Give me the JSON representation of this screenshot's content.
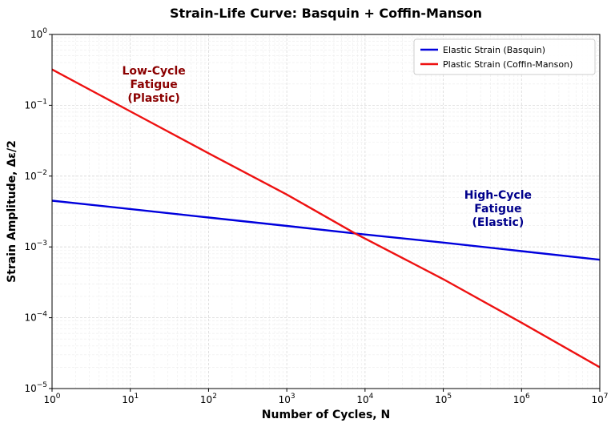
{
  "chart_data": {
    "type": "line",
    "title": "Strain-Life Curve: Basquin + Coffin-Manson",
    "xlabel": "Number of Cycles, N",
    "ylabel": "Strain Amplitude, Δε/2",
    "xscale": "log",
    "yscale": "log",
    "xlim": [
      1,
      10000000
    ],
    "ylim": [
      1e-05,
      1
    ],
    "grid": true,
    "legend_position": "top-right",
    "x_ticks": [
      {
        "value": 1,
        "base": "10",
        "exp": "0"
      },
      {
        "value": 10,
        "base": "10",
        "exp": "1"
      },
      {
        "value": 100,
        "base": "10",
        "exp": "2"
      },
      {
        "value": 1000,
        "base": "10",
        "exp": "3"
      },
      {
        "value": 10000,
        "base": "10",
        "exp": "4"
      },
      {
        "value": 100000,
        "base": "10",
        "exp": "5"
      },
      {
        "value": 1000000,
        "base": "10",
        "exp": "6"
      },
      {
        "value": 10000000,
        "base": "10",
        "exp": "7"
      }
    ],
    "y_ticks": [
      {
        "value": 1e-05,
        "base": "10",
        "exp": "−5"
      },
      {
        "value": 0.0001,
        "base": "10",
        "exp": "−4"
      },
      {
        "value": 0.001,
        "base": "10",
        "exp": "−3"
      },
      {
        "value": 0.01,
        "base": "10",
        "exp": "−2"
      },
      {
        "value": 0.1,
        "base": "10",
        "exp": "−1"
      },
      {
        "value": 1,
        "base": "10",
        "exp": "0"
      }
    ],
    "series": [
      {
        "name": "Elastic Strain (Basquin)",
        "color": "#0000dd",
        "x": [
          1,
          10,
          100,
          1000,
          7500,
          100000,
          1000000,
          10000000
        ],
        "y": [
          0.0045,
          0.00343,
          0.0026,
          0.00198,
          0.00155,
          0.00115,
          0.00087,
          0.00066
        ]
      },
      {
        "name": "Plastic Strain (Coffin-Manson)",
        "color": "#ee1111",
        "x": [
          1,
          10,
          100,
          1000,
          7500,
          100000,
          1000000,
          10000000
        ],
        "y": [
          0.32,
          0.082,
          0.021,
          0.0055,
          0.00155,
          0.00035,
          8.5e-05,
          2e-05
        ]
      }
    ],
    "annotations": [
      {
        "lines": [
          "Low-Cycle",
          "Fatigue",
          "(Plastic)"
        ],
        "x": 20,
        "y": 0.2,
        "color": "#8b0000"
      },
      {
        "lines": [
          "High-Cycle",
          "Fatigue",
          "(Elastic)"
        ],
        "x": 500000,
        "y": 0.0035,
        "color": "#00008b"
      }
    ]
  }
}
